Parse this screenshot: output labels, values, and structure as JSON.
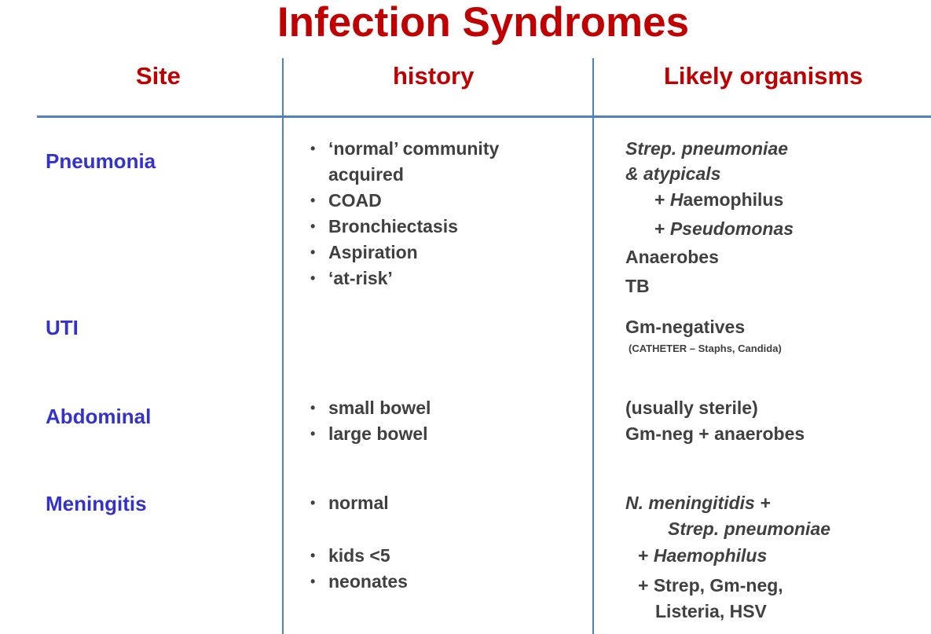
{
  "title": "Infection Syndromes",
  "headers": {
    "site": "Site",
    "history": "history",
    "organisms": "Likely organisms"
  },
  "rows": {
    "pneumonia": {
      "site": "Pneumonia",
      "history": [
        "‘normal’ community acquired",
        "COAD",
        "Bronchiectasis",
        "Aspiration",
        "‘at-risk’"
      ],
      "organisms": {
        "line1": "Strep. pneumoniae",
        "line2": "& atypicals",
        "line3_prefix": "+ ",
        "line3_italic": "H",
        "line3_rest": "aemophilus",
        "line4_prefix": "+ ",
        "line4_italic": "Pseudomonas",
        "line5": "Anaerobes",
        "line6": "TB"
      }
    },
    "uti": {
      "site": "UTI",
      "history": [],
      "organisms": {
        "line1": "Gm-negatives",
        "note": "(CATHETER – Staphs, Candida)"
      }
    },
    "abdominal": {
      "site": "Abdominal",
      "history": [
        "small bowel",
        "large bowel"
      ],
      "organisms": {
        "line1": "(usually sterile)",
        "line2": "Gm-neg + anaerobes"
      }
    },
    "meningitis": {
      "site": "Meningitis",
      "history": [
        "normal",
        "kids <5",
        "neonates"
      ],
      "organisms": {
        "line1": "N. meningitidis +",
        "line2": "Strep. pneumoniae",
        "line3_prefix": "+ ",
        "line3_italic": "Haemophilus",
        "line4": "+ Strep, Gm-neg,",
        "line5": "Listeria, HSV"
      }
    }
  },
  "bullet_glyph": "•",
  "colors": {
    "title": "#c00000",
    "header": "#c00000",
    "site": "#3333cc",
    "body_text": "#404040",
    "rule": "#4f81bd"
  }
}
